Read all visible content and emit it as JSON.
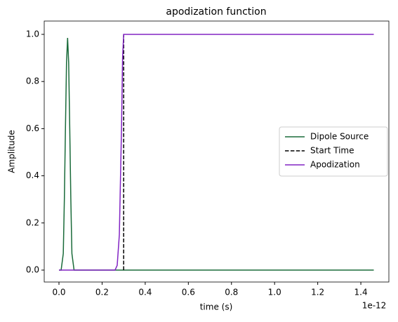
{
  "chart_data": {
    "type": "line",
    "title": "apodization function",
    "xlabel": "time (s)",
    "ylabel": "Amplitude",
    "x_offset_label": "1e-12",
    "xlim": [
      -6.84e-14,
      1.53e-12
    ],
    "xticks": [
      {
        "value": 0,
        "label": "0.0"
      },
      {
        "value": 2e-13,
        "label": "0.2"
      },
      {
        "value": 4e-13,
        "label": "0.4"
      },
      {
        "value": 6e-13,
        "label": "0.6"
      },
      {
        "value": 8e-13,
        "label": "0.8"
      },
      {
        "value": 1e-12,
        "label": "1.0"
      },
      {
        "value": 1.2e-12,
        "label": "1.2"
      },
      {
        "value": 1.4e-12,
        "label": "1.4"
      }
    ],
    "ylim": [
      -0.0506,
      1.0565
    ],
    "yticks": [
      {
        "value": 0,
        "label": "0.0"
      },
      0.2,
      0.4,
      0.6,
      0.8,
      {
        "value": 1,
        "label": "1.0"
      }
    ],
    "legend_loc": "center right",
    "series": [
      {
        "name": "Dipole Source",
        "color": "#1a6b3a",
        "dash": false,
        "x": [
          0,
          1e-14,
          2e-14,
          2.5e-14,
          3e-14,
          3.5e-14,
          4e-14,
          4.5e-14,
          5e-14,
          5.5e-14,
          6e-14,
          7e-14,
          1.46e-12
        ],
        "values": [
          0,
          0,
          0.07,
          0.3,
          0.6,
          0.88,
          0.985,
          0.88,
          0.6,
          0.3,
          0.07,
          0,
          0
        ]
      },
      {
        "name": "Start Time",
        "color": "#000000",
        "dash": true,
        "x": [
          3e-13,
          3e-13
        ],
        "values": [
          0,
          1
        ]
      },
      {
        "name": "Apodization",
        "color": "#8224c4",
        "dash": false,
        "x": [
          0,
          2.6e-13,
          2.7e-13,
          2.8e-13,
          2.9e-13,
          2.95e-13,
          3e-13,
          1.46e-12
        ],
        "values": [
          0,
          0,
          0.02,
          0.15,
          0.6,
          0.9,
          1,
          1
        ]
      }
    ]
  }
}
